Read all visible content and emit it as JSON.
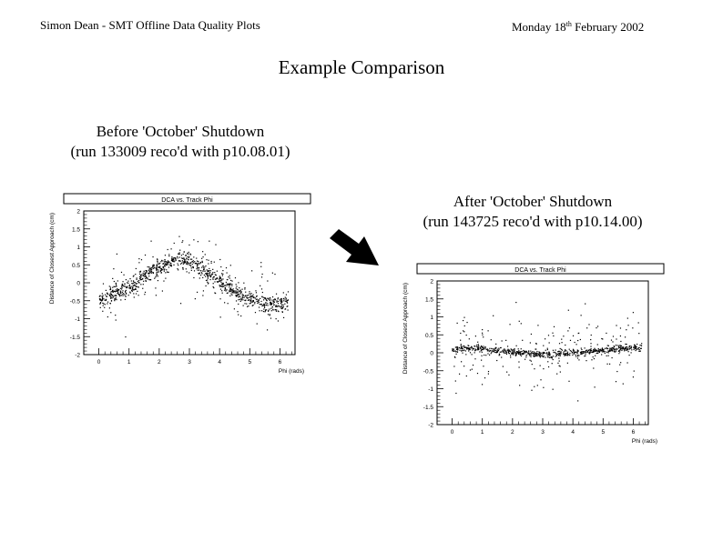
{
  "header": {
    "left": "Simon Dean - SMT Offline Data Quality Plots",
    "date_day": "Monday 18",
    "date_sup": "th",
    "date_rest": " February 2002"
  },
  "title": "Example Comparison",
  "before": {
    "caption_line1": "Before 'October' Shutdown",
    "caption_line2": "(run 133009 reco'd with p10.08.01)"
  },
  "after": {
    "caption_line1": "After 'October' Shutdown",
    "caption_line2": "(run 143725 reco'd with p10.14.00)"
  },
  "arrow_icon": "arrow-down-right-icon",
  "chart_data": [
    {
      "type": "scatter",
      "title": "DCA vs. Track Phi",
      "xlabel": "Phi (rads)",
      "ylabel": "Distance of Closest Approach (cm)",
      "xlim": [
        -0.5,
        6.5
      ],
      "ylim": [
        -2,
        2
      ],
      "xticks": [
        "0",
        "1",
        "2",
        "3",
        "4",
        "5",
        "6"
      ],
      "yticks": [
        "-2",
        "-1.5",
        "-1",
        "-0.5",
        "0",
        "0.5",
        "1",
        "1.5",
        "2"
      ],
      "band": {
        "x": [
          0.0,
          0.5,
          1.0,
          1.5,
          2.0,
          2.5,
          3.0,
          3.5,
          4.0,
          4.5,
          5.0,
          5.5,
          6.0,
          6.28
        ],
        "y": [
          -0.5,
          -0.35,
          -0.1,
          0.2,
          0.45,
          0.65,
          0.6,
          0.35,
          0.05,
          -0.25,
          -0.45,
          -0.6,
          -0.6,
          -0.5
        ]
      },
      "band_width": 0.12,
      "scatter_spread": 0.45,
      "n_band_points": 900,
      "n_noise_points": 160,
      "point_color": "#000000"
    },
    {
      "type": "scatter",
      "title": "DCA vs. Track Phi",
      "xlabel": "Phi (rads)",
      "ylabel": "Distance of Closest Approach (cm)",
      "xlim": [
        -0.5,
        6.5
      ],
      "ylim": [
        -2,
        2
      ],
      "xticks": [
        "0",
        "1",
        "2",
        "3",
        "4",
        "5",
        "6"
      ],
      "yticks": [
        "-2",
        "-1.5",
        "-1",
        "-0.5",
        "0",
        "0.5",
        "1",
        "1.5",
        "2"
      ],
      "band": {
        "x": [
          0.0,
          0.5,
          1.0,
          1.5,
          2.0,
          2.5,
          3.0,
          3.5,
          4.0,
          4.5,
          5.0,
          5.5,
          6.0,
          6.28
        ],
        "y": [
          0.12,
          0.12,
          0.1,
          0.07,
          0.03,
          -0.02,
          -0.05,
          -0.04,
          0.0,
          0.04,
          0.08,
          0.11,
          0.13,
          0.13
        ]
      },
      "band_width": 0.05,
      "scatter_spread": 0.5,
      "n_band_points": 650,
      "n_noise_points": 220,
      "point_color": "#000000"
    }
  ]
}
